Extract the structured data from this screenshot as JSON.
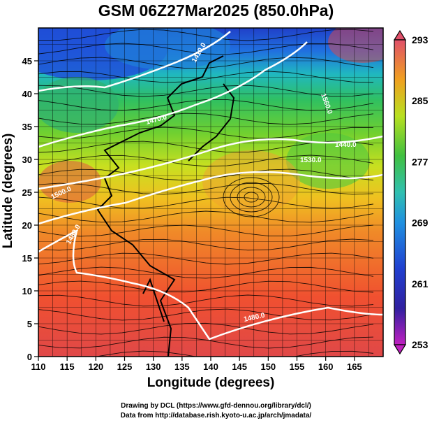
{
  "title": "GSM 06Z27Mar2025 (850.0hPa)",
  "xlabel": "Longitude (degrees)",
  "ylabel": "Latitude  (degrees)",
  "x_ticks": [
    "110",
    "115",
    "120",
    "125",
    "130",
    "135",
    "140",
    "145",
    "150",
    "155",
    "160",
    "165"
  ],
  "y_ticks": [
    "0",
    "5",
    "10",
    "15",
    "20",
    "25",
    "30",
    "35",
    "40",
    "45"
  ],
  "colorbar": {
    "ticks": [
      "293",
      "285",
      "277",
      "269",
      "261",
      "253"
    ],
    "colors": [
      "#e0506a",
      "#f08030",
      "#f0c020",
      "#b8e020",
      "#40c040",
      "#30c0b0",
      "#2090e0",
      "#2040d0",
      "#3020a0",
      "#c020c0"
    ]
  },
  "contour_labels": [
    "1560.0",
    "1530.0",
    "1500.0",
    "1470.0",
    "1440.0",
    "1410.0",
    "1480.0",
    "1480.0"
  ],
  "credits": {
    "line1": "Drawing by DCL (https://www.gfd-dennou.org/library/dcl/)",
    "line2": "Data from http://database.rish.kyoto-u.ac.jp/arch/jmadata/"
  }
}
